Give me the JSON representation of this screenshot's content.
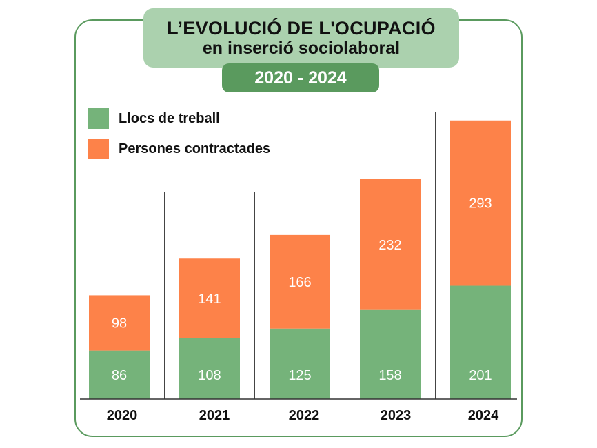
{
  "header": {
    "title_line1": "L’EVOLUCIÓ DE L'OCUPACIÓ",
    "title_line2": "en inserció sociolaboral",
    "years": "2020 - 2024"
  },
  "colors": {
    "green": "#75b37a",
    "orange": "#fd8249",
    "frame": "#5a9a5e"
  },
  "chart_data": {
    "type": "bar",
    "stacked": true,
    "title": "L’EVOLUCIÓ DE L'OCUPACIÓ en inserció sociolaboral",
    "subtitle": "2020 - 2024",
    "categories": [
      "2020",
      "2021",
      "2022",
      "2023",
      "2024"
    ],
    "series": [
      {
        "name": "Llocs de treball",
        "values": [
          86,
          108,
          125,
          158,
          201
        ],
        "color": "#75b37a"
      },
      {
        "name": "Persones contractades",
        "values": [
          98,
          141,
          166,
          232,
          293
        ],
        "color": "#fd8249"
      }
    ],
    "legend_position": "top-left",
    "grid": false
  }
}
